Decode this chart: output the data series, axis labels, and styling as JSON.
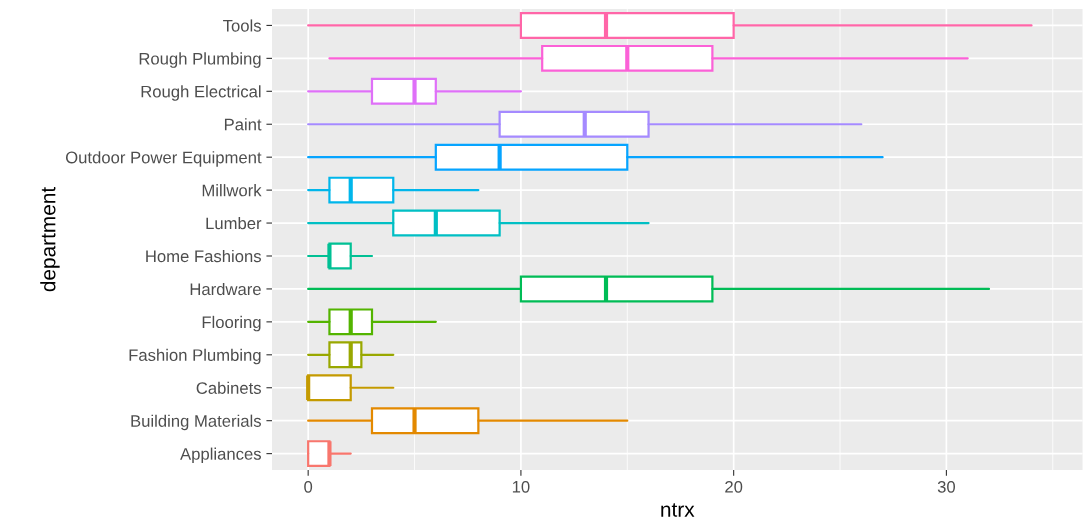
{
  "chart_data": {
    "type": "box",
    "orientation": "horizontal",
    "xlabel": "ntrx",
    "ylabel": "department",
    "categories": [
      "Tools",
      "Rough Plumbing",
      "Rough Electrical",
      "Paint",
      "Outdoor Power Equipment",
      "Millwork",
      "Lumber",
      "Home Fashions",
      "Hardware",
      "Flooring",
      "Fashion Plumbing",
      "Cabinets",
      "Building Materials",
      "Appliances"
    ],
    "colors": [
      "#FF66A8",
      "#FB61D7",
      "#DF70F8",
      "#A58AFF",
      "#06A4FF",
      "#00B6EB",
      "#00BFC4",
      "#00C094",
      "#00BC56",
      "#53B400",
      "#99A800",
      "#C49A00",
      "#E38900",
      "#F8766D"
    ],
    "boxes": [
      {
        "low": 0,
        "q1": 10,
        "median": 14,
        "q3": 20,
        "high": 34
      },
      {
        "low": 1,
        "q1": 11,
        "median": 15,
        "q3": 19,
        "high": 31
      },
      {
        "low": 0,
        "q1": 3,
        "median": 5,
        "q3": 6,
        "high": 10
      },
      {
        "low": 0,
        "q1": 9,
        "median": 13,
        "q3": 16,
        "high": 26
      },
      {
        "low": 0,
        "q1": 6,
        "median": 9,
        "q3": 15,
        "high": 27
      },
      {
        "low": 0,
        "q1": 1,
        "median": 2,
        "q3": 4,
        "high": 8
      },
      {
        "low": 0,
        "q1": 4,
        "median": 6,
        "q3": 9,
        "high": 16
      },
      {
        "low": 0,
        "q1": 1,
        "median": 1,
        "q3": 2,
        "high": 3
      },
      {
        "low": 0,
        "q1": 10,
        "median": 14,
        "q3": 19,
        "high": 32
      },
      {
        "low": 0,
        "q1": 1,
        "median": 2,
        "q3": 3,
        "high": 6
      },
      {
        "low": 0,
        "q1": 1,
        "median": 2,
        "q3": 2.5,
        "high": 4
      },
      {
        "low": 0,
        "q1": 0,
        "median": 0,
        "q3": 2,
        "high": 4
      },
      {
        "low": 0,
        "q1": 3,
        "median": 5,
        "q3": 8,
        "high": 15
      },
      {
        "low": 0,
        "q1": 0,
        "median": 1,
        "q3": 1,
        "high": 2
      }
    ],
    "xlim": [
      -1.7,
      36.4
    ],
    "xticks": [
      0,
      10,
      20,
      30
    ],
    "grid": true,
    "legend": false
  }
}
